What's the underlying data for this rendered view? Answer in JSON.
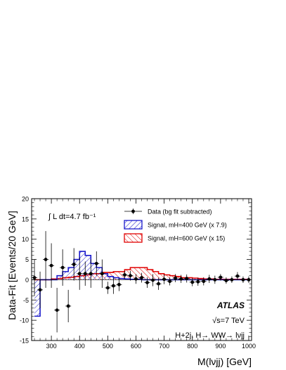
{
  "chart_data": {
    "type": "scatter",
    "xlabel": "M(lνjj) [GeV]",
    "ylabel": "Data-Fit [Events/20 GeV]",
    "xlim": [
      230,
      1010
    ],
    "ylim": [
      -15,
      20
    ],
    "x_ticks": [
      300,
      400,
      500,
      600,
      700,
      800,
      900,
      1000
    ],
    "y_ticks": [
      -15,
      -10,
      -5,
      0,
      5,
      10,
      15,
      20
    ],
    "grid": false,
    "legend_position": "top-right",
    "lumi_text": "∫ L dt=4.7 fb⁻¹",
    "experiment": "ATLAS",
    "energy": "√s=7 TeV",
    "channel": "H+2j, H→ WW→ lνjj",
    "legend": [
      {
        "label": "Data (bg fit subtracted)",
        "style": "marker",
        "color": "#000000"
      },
      {
        "label": "Signal, mH=400 GeV (x 7.9)",
        "style": "hatch-blue",
        "color": "#1a1acc"
      },
      {
        "label": "Signal, mH=600 GeV (x 15)",
        "style": "hatch-red",
        "color": "#e00000"
      }
    ],
    "data_points": {
      "x": [
        240,
        260,
        280,
        300,
        320,
        340,
        360,
        380,
        400,
        420,
        440,
        460,
        480,
        500,
        520,
        540,
        560,
        580,
        600,
        620,
        640,
        660,
        680,
        700,
        720,
        740,
        760,
        780,
        800,
        820,
        840,
        860,
        880,
        900,
        920,
        940,
        960,
        980,
        1000
      ],
      "y": [
        0.5,
        -2.5,
        5,
        3.5,
        -7.5,
        3,
        -6.5,
        3.8,
        1.5,
        1.5,
        1.5,
        4,
        1.5,
        -2,
        -1.5,
        -1.2,
        1.2,
        1,
        0.2,
        0.5,
        -0.7,
        -0.1,
        -1,
        0.1,
        -0.4,
        0.4,
        0.2,
        0.3,
        -0.6,
        -0.5,
        -0.4,
        0.2,
        0,
        0.6,
        -0.2,
        0,
        0.9,
        0,
        0
      ],
      "err": [
        4.5,
        4.5,
        7,
        5.5,
        5.5,
        4.5,
        4,
        4,
        4,
        3,
        3.5,
        3,
        3.5,
        1.5,
        2,
        1.6,
        1,
        1.2,
        1.2,
        1.2,
        1.3,
        1.5,
        1.5,
        1.2,
        1,
        1,
        1,
        1,
        1,
        1,
        1,
        1,
        1,
        0.8,
        0.8,
        0.8,
        1,
        0.8,
        0.8
      ]
    },
    "series": [
      {
        "name": "Signal, mH=400 GeV (x 7.9)",
        "bin_edges": [
          240,
          260,
          280,
          300,
          320,
          340,
          360,
          380,
          400,
          420,
          440,
          460,
          480,
          500,
          520,
          540,
          560,
          580,
          600,
          620,
          640,
          660,
          680,
          700,
          720,
          740,
          760,
          780,
          800,
          820,
          840,
          860,
          880,
          900,
          920,
          940,
          960,
          980,
          1000
        ],
        "values": [
          -9,
          0,
          0,
          0,
          1,
          2,
          3,
          5,
          7,
          6,
          4,
          3,
          1.5,
          0.8,
          0.5,
          0.3,
          0.2,
          0.1,
          0.1,
          0,
          0,
          0,
          0,
          0,
          0,
          0,
          0,
          0,
          0,
          0,
          0,
          0,
          0,
          0,
          0,
          0,
          0,
          0
        ]
      },
      {
        "name": "Signal, mH=600 GeV (x 15)",
        "bin_edges": [
          240,
          260,
          280,
          300,
          320,
          340,
          360,
          380,
          400,
          420,
          440,
          460,
          480,
          500,
          520,
          540,
          560,
          580,
          600,
          620,
          640,
          660,
          680,
          700,
          720,
          740,
          760,
          780,
          800,
          820,
          840,
          860,
          880,
          900,
          920,
          940,
          960,
          980,
          1000
        ],
        "values": [
          0,
          0,
          0,
          0.2,
          0.3,
          0.5,
          0.6,
          0.8,
          1,
          1.2,
          1.5,
          1.5,
          1.8,
          1.8,
          2,
          2,
          2.5,
          3,
          3,
          3,
          2.5,
          2,
          1.5,
          1.2,
          1,
          0.8,
          0.5,
          0.5,
          0.4,
          0.3,
          0.2,
          0.2,
          0.1,
          0.1,
          0.1,
          0.1,
          0.1,
          0.1
        ]
      }
    ]
  }
}
